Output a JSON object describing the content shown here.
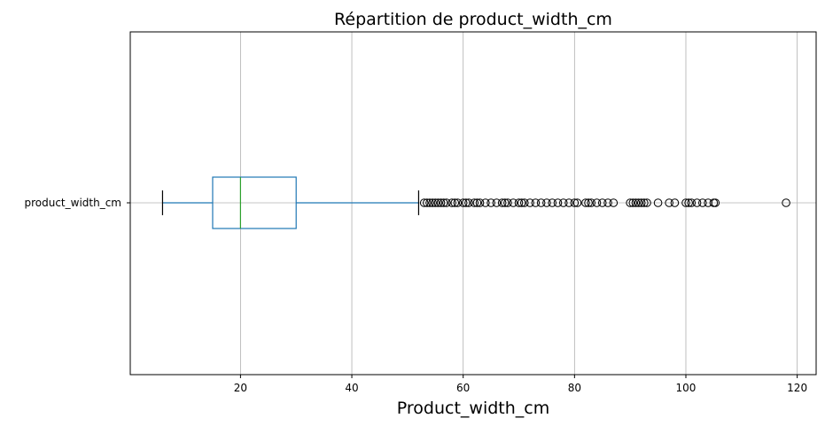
{
  "chart_data": {
    "type": "boxplot",
    "title": "Répartition de product_width_cm",
    "xlabel": "Product_width_cm",
    "ylabel": "",
    "orientation": "horizontal",
    "category": "product_width_cm",
    "xlim": [
      0.2,
      123.4
    ],
    "xticks": [
      20,
      40,
      60,
      80,
      100,
      120
    ],
    "grid": true,
    "box": {
      "whisker_low": 6,
      "q1": 15,
      "median": 20,
      "q3": 30,
      "whisker_high": 52
    },
    "outliers": [
      53,
      53.5,
      54,
      54.5,
      55,
      55.5,
      56,
      56.5,
      57,
      58,
      58.5,
      59,
      60,
      60.5,
      61,
      62,
      62.5,
      63,
      64,
      65,
      66,
      67,
      67.5,
      68,
      69,
      70,
      70.5,
      71,
      72,
      73,
      74,
      75,
      76,
      77,
      78,
      79,
      80,
      80.5,
      82,
      82.5,
      83,
      84,
      85,
      86,
      87,
      90,
      90.5,
      91,
      91.5,
      92,
      92.5,
      93,
      95,
      97,
      98,
      100,
      100.5,
      101,
      102,
      103,
      104,
      105,
      105.3,
      118
    ],
    "colors": {
      "box": "#1f77b4",
      "median": "#2ca02c",
      "whisker": "#1f77b4",
      "cap": "#000000",
      "outlier": "#000000",
      "grid": "#b0b0b0"
    }
  }
}
